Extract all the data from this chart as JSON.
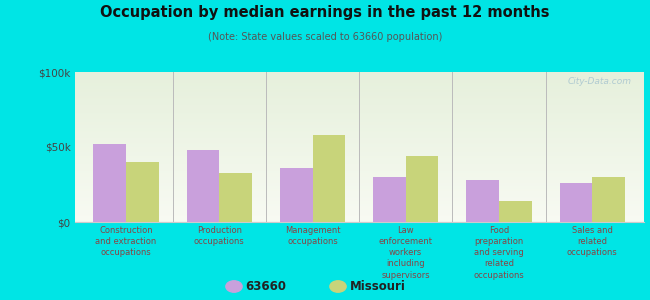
{
  "title": "Occupation by median earnings in the past 12 months",
  "subtitle": "(Note: State values scaled to 63660 population)",
  "categories": [
    "Construction\nand extraction\noccupations",
    "Production\noccupations",
    "Management\noccupations",
    "Law\nenforcement\nworkers\nincluding\nsupervisors",
    "Food\npreparation\nand serving\nrelated\noccupations",
    "Sales and\nrelated\noccupations"
  ],
  "values_63660": [
    52000,
    48000,
    36000,
    30000,
    28000,
    26000
  ],
  "values_missouri": [
    40000,
    33000,
    58000,
    44000,
    14000,
    30000
  ],
  "color_63660": "#c9a0dc",
  "color_missouri": "#c8d47a",
  "ylim": [
    0,
    100000
  ],
  "yticks": [
    0,
    50000,
    100000
  ],
  "ytick_labels": [
    "$0",
    "$50k",
    "$100k"
  ],
  "legend_labels": [
    "63660",
    "Missouri"
  ],
  "outer_bg": "#00e5e5",
  "watermark": "City-Data.com",
  "bar_width": 0.35,
  "separator_color": "#bbbbbb",
  "spine_color": "#cccccc"
}
